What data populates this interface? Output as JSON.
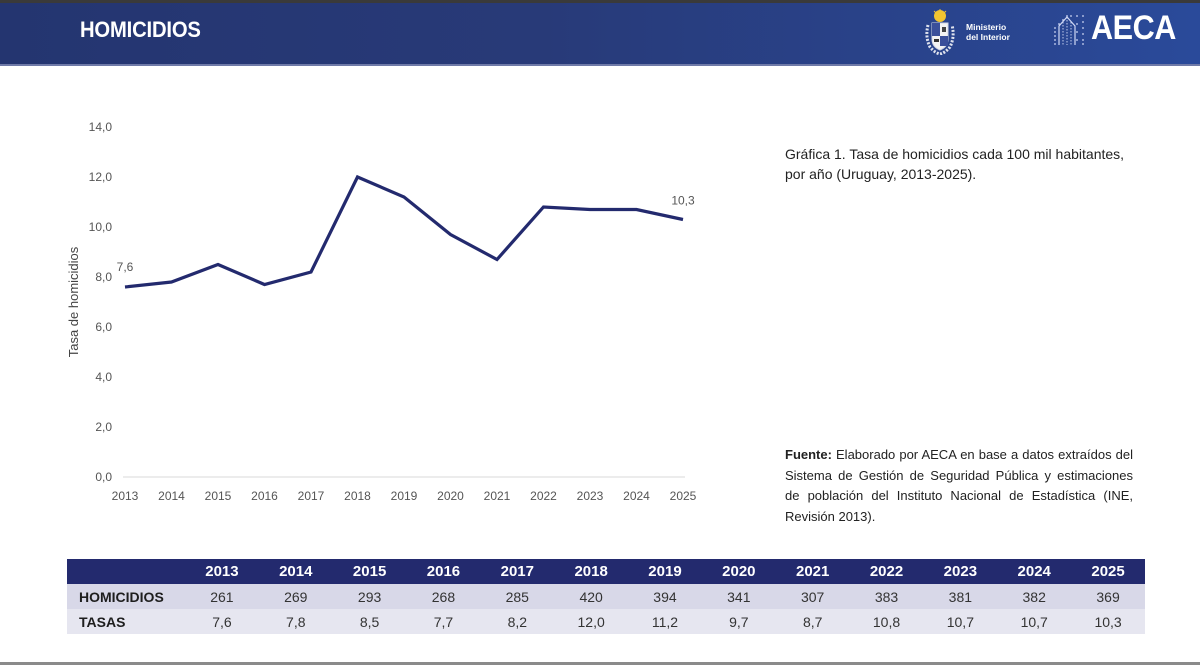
{
  "header": {
    "title": "HOMICIDIOS",
    "ministry_line1": "Ministerio",
    "ministry_line2": "del Interior",
    "ministry_logo_icon": "uruguay-coat-of-arms-icon",
    "aeca_logo_icon": "aeca-dotted-house-icon",
    "aeca_label": "AECA"
  },
  "colors": {
    "header_bg": "#283a78",
    "line": "#232a6e",
    "table_header_bg": "#232a6e",
    "table_row1_bg": "#d8d8e8",
    "table_row2_bg": "#e6e6f0"
  },
  "chart_data": {
    "type": "line",
    "title": "Gráfica 1. Tasa de homicidios cada 100 mil habitantes, por año (Uruguay, 2013-2025).",
    "xlabel": "",
    "ylabel": "Tasa de homicidios",
    "categories": [
      "2013",
      "2014",
      "2015",
      "2016",
      "2017",
      "2018",
      "2019",
      "2020",
      "2021",
      "2022",
      "2023",
      "2024",
      "2025"
    ],
    "series": [
      {
        "name": "Tasa de homicidios",
        "values": [
          7.6,
          7.8,
          8.5,
          7.7,
          8.2,
          12.0,
          11.2,
          9.7,
          8.7,
          10.8,
          10.7,
          10.7,
          10.3
        ]
      }
    ],
    "ylim": [
      0,
      14
    ],
    "yticks": [
      0,
      2,
      4,
      6,
      8,
      10,
      12,
      14
    ],
    "ytick_labels": [
      "0,0",
      "2,0",
      "4,0",
      "6,0",
      "8,0",
      "10,0",
      "12,0",
      "14,0"
    ],
    "data_labels": [
      {
        "index": 0,
        "text": "7,6"
      },
      {
        "index": 12,
        "text": "10,3"
      }
    ],
    "grid": false,
    "legend": "none"
  },
  "caption": {
    "text": "Gráfica 1. Tasa de homicidios cada 100 mil habitantes, por año (Uruguay, 2013-2025)."
  },
  "source": {
    "label": "Fuente:",
    "text": " Elaborado por AECA en base a datos extraídos del Sistema de Gestión de Seguridad Pública y estimaciones de población del Instituto Nacional de Estadística (INE, Revisión 2013)."
  },
  "table": {
    "columns": [
      "2013",
      "2014",
      "2015",
      "2016",
      "2017",
      "2018",
      "2019",
      "2020",
      "2021",
      "2022",
      "2023",
      "2024",
      "2025"
    ],
    "rows": [
      {
        "label": "HOMICIDIOS",
        "values": [
          "261",
          "269",
          "293",
          "268",
          "285",
          "420",
          "394",
          "341",
          "307",
          "383",
          "381",
          "382",
          "369"
        ]
      },
      {
        "label": "TASAS",
        "values": [
          "7,6",
          "7,8",
          "8,5",
          "7,7",
          "8,2",
          "12,0",
          "11,2",
          "9,7",
          "8,7",
          "10,8",
          "10,7",
          "10,7",
          "10,3"
        ]
      }
    ]
  }
}
